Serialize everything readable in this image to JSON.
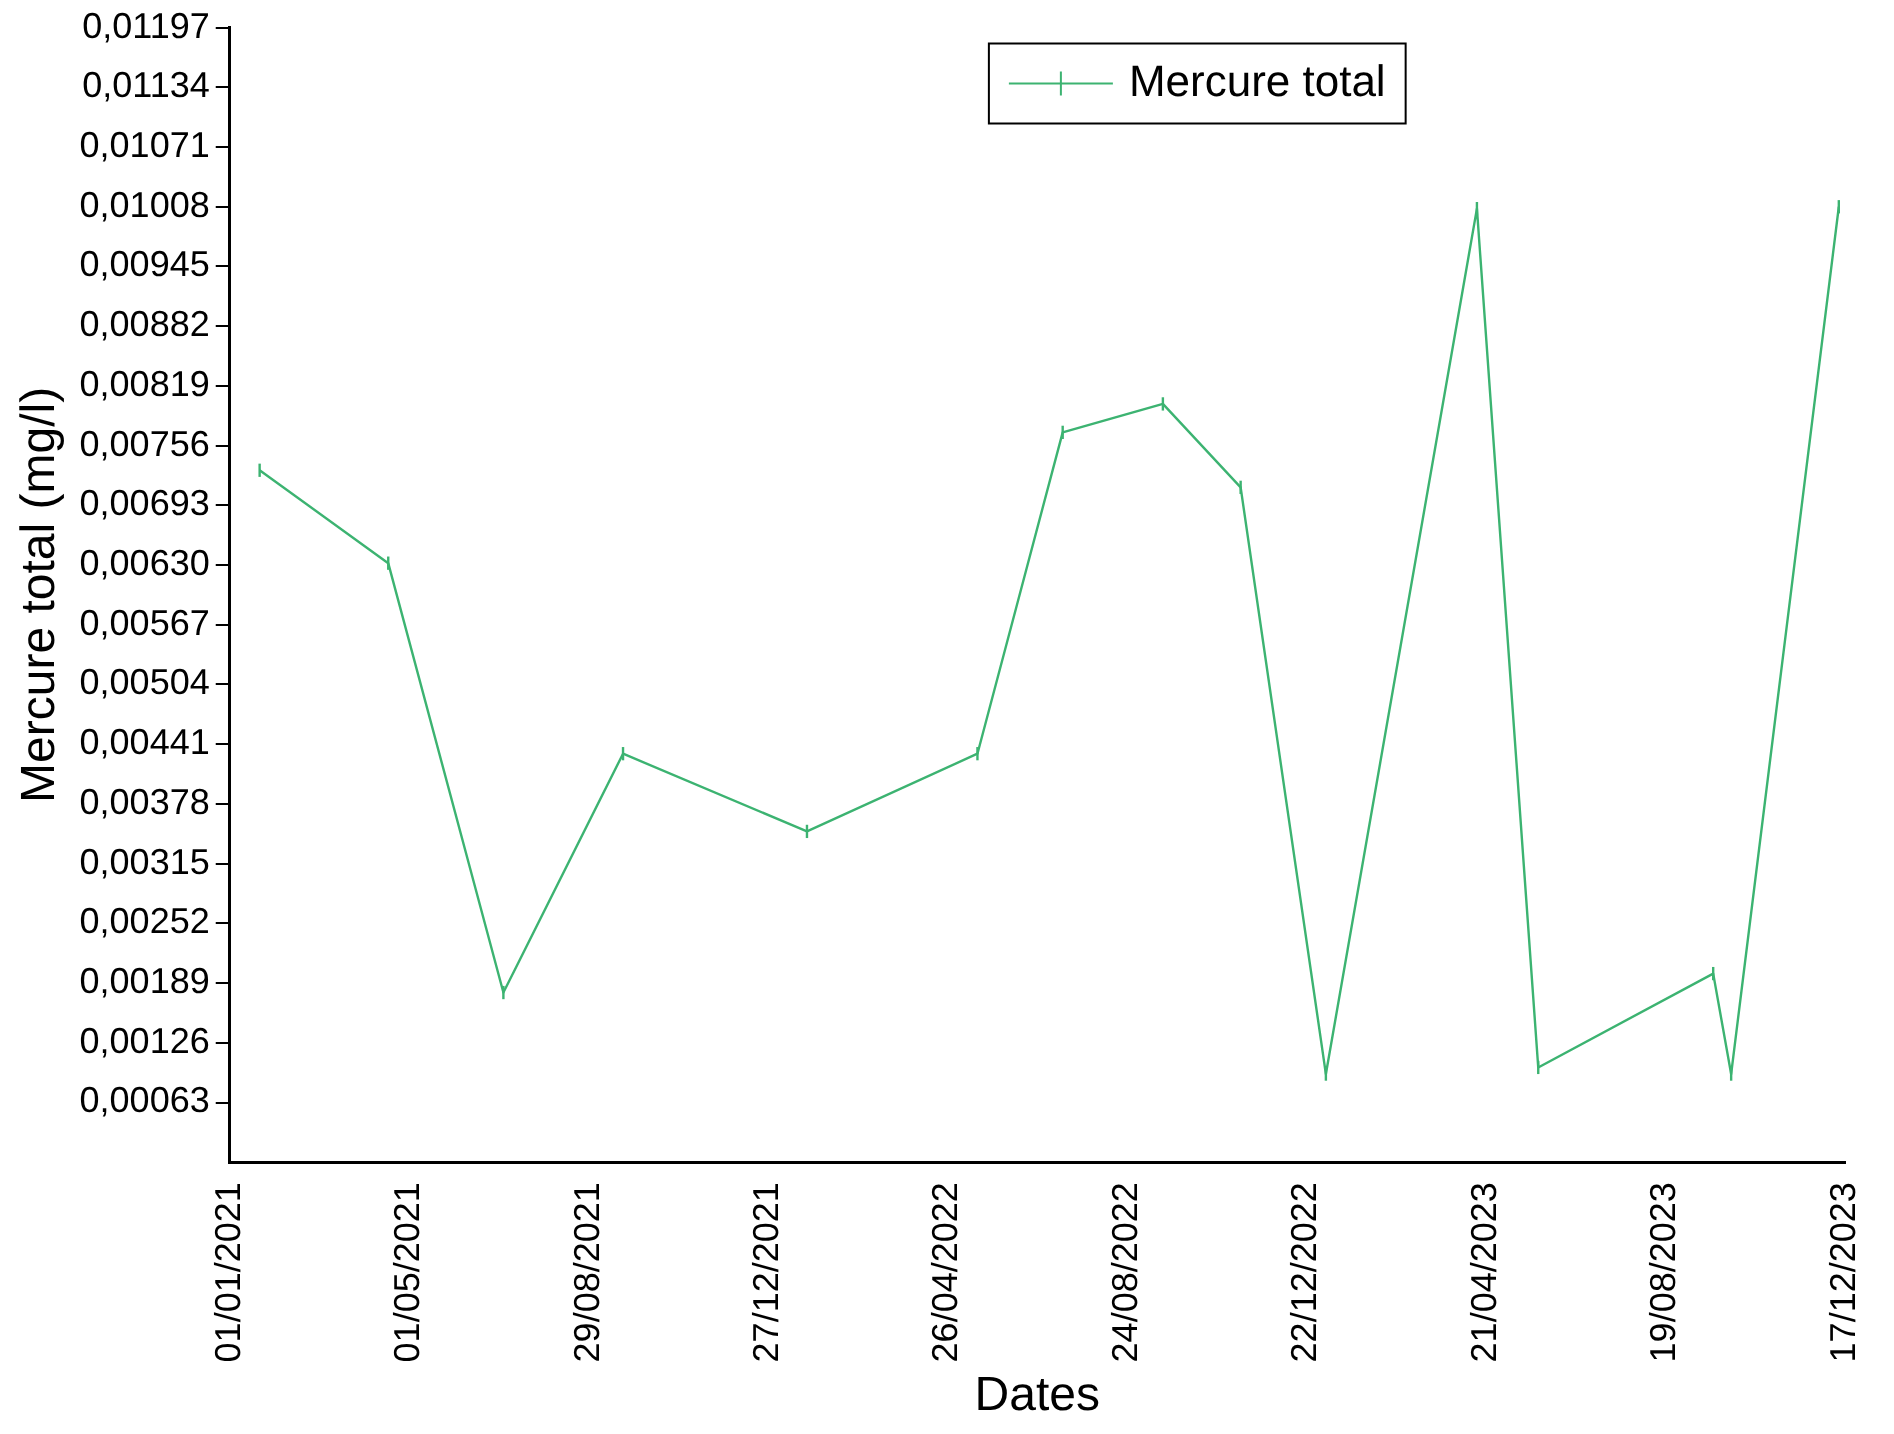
{
  "chart_data": {
    "type": "line",
    "xlabel": "Dates",
    "ylabel": "Mercure total (mg/l)",
    "x": [
      "2021-01-21",
      "2021-04-17",
      "2021-07-03",
      "2021-09-21",
      "2022-01-22",
      "2022-05-16",
      "2022-07-12",
      "2022-09-17",
      "2022-11-08",
      "2023-01-04",
      "2023-04-15",
      "2023-05-26",
      "2023-09-20",
      "2023-10-02",
      "2023-12-13"
    ],
    "series": [
      {
        "name": "Mercure total",
        "color": "#3cb371",
        "values": [
          0.0073,
          0.00632,
          0.00179,
          0.00431,
          0.00349,
          0.00431,
          0.0077,
          0.008,
          0.00712,
          0.00093,
          0.01006,
          0.001,
          0.00199,
          0.00093,
          0.01008
        ],
        "errors": [
          7e-05,
          7e-05,
          7e-05,
          7e-05,
          7e-05,
          7e-05,
          7e-05,
          7e-05,
          7e-05,
          7e-05,
          7e-05,
          7e-05,
          7e-05,
          7e-05,
          7e-05
        ]
      }
    ],
    "xlim": [
      "2021-01-01",
      "2023-12-17"
    ],
    "xticks": [
      {
        "value": "2021-01-01",
        "label": "01/01/2021"
      },
      {
        "value": "2021-05-01",
        "label": "01/05/2021"
      },
      {
        "value": "2021-08-29",
        "label": "29/08/2021"
      },
      {
        "value": "2021-12-27",
        "label": "27/12/2021"
      },
      {
        "value": "2022-04-26",
        "label": "26/04/2022"
      },
      {
        "value": "2022-08-24",
        "label": "24/08/2022"
      },
      {
        "value": "2022-12-22",
        "label": "22/12/2022"
      },
      {
        "value": "2023-04-21",
        "label": "21/04/2023"
      },
      {
        "value": "2023-08-19",
        "label": "19/08/2023"
      },
      {
        "value": "2023-12-17",
        "label": "17/12/2023"
      }
    ],
    "ylim": [
      0,
      0.01197
    ],
    "yticks": [
      {
        "value": 0.00063,
        "label": "0,00063"
      },
      {
        "value": 0.00126,
        "label": "0,00126"
      },
      {
        "value": 0.00189,
        "label": "0,00189"
      },
      {
        "value": 0.00252,
        "label": "0,00252"
      },
      {
        "value": 0.00315,
        "label": "0,00315"
      },
      {
        "value": 0.00378,
        "label": "0,00378"
      },
      {
        "value": 0.00441,
        "label": "0,00441"
      },
      {
        "value": 0.00504,
        "label": "0,00504"
      },
      {
        "value": 0.00567,
        "label": "0,00567"
      },
      {
        "value": 0.0063,
        "label": "0,00630"
      },
      {
        "value": 0.00693,
        "label": "0,00693"
      },
      {
        "value": 0.00756,
        "label": "0,00756"
      },
      {
        "value": 0.00819,
        "label": "0,00819"
      },
      {
        "value": 0.00882,
        "label": "0,00882"
      },
      {
        "value": 0.00945,
        "label": "0,00945"
      },
      {
        "value": 0.01008,
        "label": "0,01008"
      },
      {
        "value": 0.01071,
        "label": "0,01071"
      },
      {
        "value": 0.01134,
        "label": "0,01134"
      },
      {
        "value": 0.01197,
        "label": "0,01197"
      }
    ],
    "grid": false,
    "legend": "top",
    "marker": "none",
    "line_style": "solid"
  }
}
